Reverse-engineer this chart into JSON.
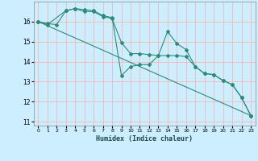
{
  "title": "",
  "xlabel": "Humidex (Indice chaleur)",
  "ylabel": "",
  "background_color": "#cceeff",
  "grid_color": "#ffaaaa",
  "line_color": "#2e8b7a",
  "xlim": [
    -0.5,
    23.5
  ],
  "ylim": [
    10.8,
    17.0
  ],
  "yticks": [
    11,
    12,
    13,
    14,
    15,
    16
  ],
  "xticks": [
    0,
    1,
    2,
    3,
    4,
    5,
    6,
    7,
    8,
    9,
    10,
    11,
    12,
    13,
    14,
    15,
    16,
    17,
    18,
    19,
    20,
    21,
    22,
    23
  ],
  "series1_x": [
    0,
    1,
    2,
    3,
    4,
    5,
    6,
    7,
    8,
    9,
    10,
    11,
    12,
    13,
    14,
    15,
    16,
    17,
    18,
    19,
    20,
    21,
    22,
    23
  ],
  "series1_y": [
    16.0,
    15.9,
    15.85,
    16.55,
    16.65,
    16.6,
    16.55,
    16.3,
    16.2,
    13.3,
    13.75,
    13.85,
    13.85,
    14.3,
    15.5,
    14.9,
    14.6,
    13.75,
    13.4,
    13.35,
    13.05,
    12.85,
    12.2,
    11.3
  ],
  "series2_x": [
    0,
    1,
    3,
    4,
    5,
    6,
    7,
    8,
    9,
    10,
    11,
    12,
    13,
    14,
    15,
    16,
    17,
    18,
    19,
    20,
    21,
    22,
    23
  ],
  "series2_y": [
    16.0,
    15.85,
    16.55,
    16.65,
    16.5,
    16.5,
    16.25,
    16.15,
    14.95,
    14.4,
    14.4,
    14.35,
    14.3,
    14.3,
    14.3,
    14.25,
    13.75,
    13.4,
    13.35,
    13.05,
    12.85,
    12.2,
    11.3
  ],
  "series3_x": [
    0,
    23
  ],
  "series3_y": [
    16.0,
    11.3
  ]
}
